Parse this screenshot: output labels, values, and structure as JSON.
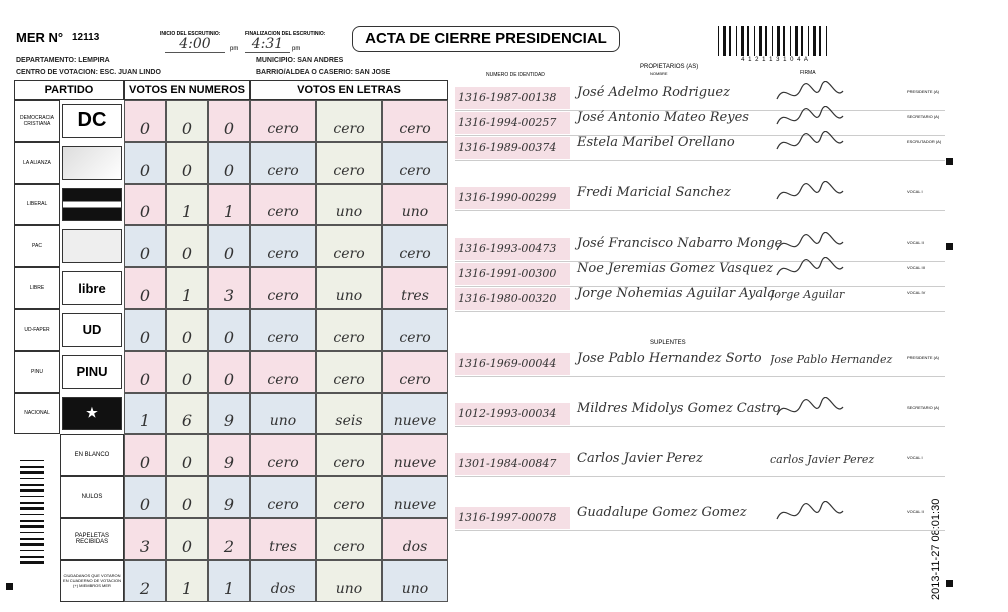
{
  "header": {
    "mer_label": "MER N°",
    "mer_number": "12113",
    "inicio_label": "INICIO DEL ESCRUTINIO:",
    "inicio_time": "4:00",
    "inicio_suffix": "pm",
    "final_label": "FINALIZACION DEL ESCRUTINIO:",
    "final_time": "4:31",
    "final_suffix": "pm",
    "title": "ACTA DE CIERRE PRESIDENCIAL",
    "departamento": "DEPARTAMENTO: LEMPIRA",
    "municipio": "MUNICIPIO: SAN ANDRES",
    "centro": "CENTRO DE VOTACION: ESC. JUAN LINDO",
    "barrio": "BARRIO/ALDEA O CASERIO: SAN JOSE",
    "barcode_text": "4 1 2 1 1 3 1 0 4 A"
  },
  "table": {
    "headers": [
      "PARTIDO",
      "VOTOS EN NUMEROS",
      "VOTOS EN LETRAS"
    ],
    "rows": [
      {
        "label": "DEMOCRACIA CRISTIANA",
        "logo": "DC",
        "digits": [
          "0",
          "0",
          "0"
        ],
        "words": [
          "cero",
          "cero",
          "cero"
        ]
      },
      {
        "label": "LA ALIANZA",
        "digits": [
          "0",
          "0",
          "0"
        ],
        "words": [
          "cero",
          "cero",
          "cero"
        ]
      },
      {
        "label": "LIBERAL",
        "digits": [
          "0",
          "1",
          "1"
        ],
        "words": [
          "cero",
          "uno",
          "uno"
        ]
      },
      {
        "label": "PAC",
        "digits": [
          "0",
          "0",
          "0"
        ],
        "words": [
          "cero",
          "cero",
          "cero"
        ]
      },
      {
        "label": "LIBRE",
        "logo": "libre",
        "digits": [
          "0",
          "1",
          "3"
        ],
        "words": [
          "cero",
          "uno",
          "tres"
        ]
      },
      {
        "label": "UD-FAPER",
        "logo": "UD",
        "digits": [
          "0",
          "0",
          "0"
        ],
        "words": [
          "cero",
          "cero",
          "cero"
        ]
      },
      {
        "label": "PINU",
        "logo": "PINU",
        "digits": [
          "0",
          "0",
          "0"
        ],
        "words": [
          "cero",
          "cero",
          "cero"
        ]
      },
      {
        "label": "NACIONAL",
        "digits": [
          "1",
          "6",
          "9"
        ],
        "words": [
          "uno",
          "seis",
          "nueve"
        ]
      },
      {
        "label": "EN BLANCO",
        "digits": [
          "0",
          "0",
          "9"
        ],
        "words": [
          "cero",
          "cero",
          "nueve"
        ]
      },
      {
        "label": "NULOS",
        "digits": [
          "0",
          "0",
          "9"
        ],
        "words": [
          "cero",
          "cero",
          "nueve"
        ]
      },
      {
        "label": "PAPELETAS RECIBIDAS",
        "digits": [
          "3",
          "0",
          "2"
        ],
        "words": [
          "tres",
          "cero",
          "dos"
        ]
      },
      {
        "label": "CIUDADANOS QUE VOTARON EN CUADERNO DE VOTACION (+) MIEMBROS MER",
        "digits": [
          "2",
          "1",
          "1"
        ],
        "words": [
          "dos",
          "uno",
          "uno"
        ]
      }
    ]
  },
  "members": {
    "id_header": "NUMERO DE IDENTIDAD",
    "owners_header": "PROPIETARIOS (AS)",
    "name_header": "NOMBRE",
    "sign_header": "FIRMA",
    "substitutes_header": "SUPLENTES",
    "owners": [
      {
        "id": "1316-1987-00138",
        "name": "José Adelmo Rodriguez",
        "role": "PRESIDENTE (A)"
      },
      {
        "id": "1316-1994-00257",
        "name": "José Antonio Mateo Reyes",
        "role": "SECRETARIO (A)"
      },
      {
        "id": "1316-1989-00374",
        "name": "Estela Maribel Orellano",
        "role": "ESCRUTADOR (A)"
      },
      {
        "id": "1316-1990-00299",
        "name": "Fredi Maricial Sanchez",
        "role": "VOCAL I"
      },
      {
        "id": "1316-1993-00473",
        "name": "José Francisco Nabarro Monge",
        "role": "VOCAL II"
      },
      {
        "id": "1316-1991-00300",
        "name": "Noe Jeremias Gomez Vasquez",
        "role": "VOCAL III"
      },
      {
        "id": "1316-1980-00320",
        "name": "Jorge Nohemias Aguilar Ayala",
        "signature": "Jorge Aguilar",
        "role": "VOCAL IV"
      }
    ],
    "substitutes": [
      {
        "id": "1316-1969-00044",
        "name": "Jose Pablo Hernandez Sorto",
        "signature": "Jose Pablo Hernandez",
        "role": "PRESIDENTE (A)"
      },
      {
        "id": "1012-1993-00034",
        "name": "Mildres Midolys Gomez Castro",
        "role": "SECRETARIO (A)"
      },
      {
        "id": "1301-1984-00847",
        "name": "Carlos Javier Perez",
        "signature": "carlos Javier Perez",
        "role": "VOCAL I"
      },
      {
        "id": "1316-1997-00078",
        "name": "Guadalupe Gomez Gomez",
        "role": "VOCAL II"
      }
    ]
  },
  "footer": {
    "timestamp": "2013-11-27 08:01:30"
  }
}
